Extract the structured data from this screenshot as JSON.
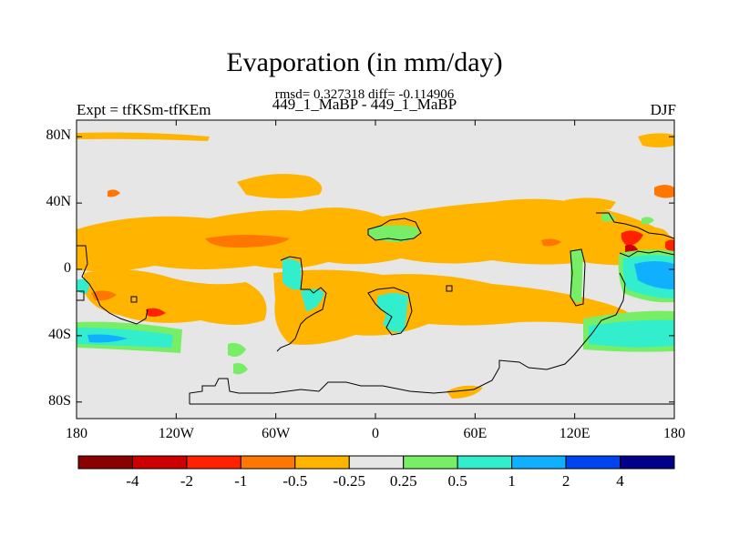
{
  "title": "Evaporation (in mm/day)",
  "stats": "rmsd= 0.327318 diff= -0.114906",
  "left_label": "Expt = tfKSm-tfKEm",
  "center_label": "449_1_MaBP - 449_1_MaBP",
  "right_label": "DJF",
  "lat_ticks": [
    {
      "label": "80N",
      "lat": 80
    },
    {
      "label": "40N",
      "lat": 40
    },
    {
      "label": "0",
      "lat": 0
    },
    {
      "label": "40S",
      "lat": -40
    },
    {
      "label": "80S",
      "lat": -80
    }
  ],
  "lon_ticks": [
    {
      "label": "180",
      "lon": -180
    },
    {
      "label": "120W",
      "lon": -120
    },
    {
      "label": "60W",
      "lon": -60
    },
    {
      "label": "0",
      "lon": 0
    },
    {
      "label": "60E",
      "lon": 60
    },
    {
      "label": "120E",
      "lon": 120
    },
    {
      "label": "180",
      "lon": 180
    }
  ],
  "colorbar": {
    "colors": [
      "#8b0000",
      "#cc0000",
      "#ff2200",
      "#ff7700",
      "#ffb400",
      "#e6e6e6",
      "#77ee66",
      "#33eecc",
      "#11b0ff",
      "#0044ee",
      "#000088"
    ],
    "labels": [
      "-4",
      "-2",
      "-1",
      "-0.5",
      "-0.25",
      "0.25",
      "0.5",
      "1",
      "2",
      "4"
    ]
  },
  "colors": {
    "background": "#e6e6e6",
    "neg_light": "#ffb400",
    "neg_mid": "#ff7700",
    "neg_strong": "#ff2200",
    "neg_dark": "#cc0000",
    "pos_light": "#77ee66",
    "pos_mid": "#33eecc",
    "pos_strong": "#11b0ff"
  }
}
